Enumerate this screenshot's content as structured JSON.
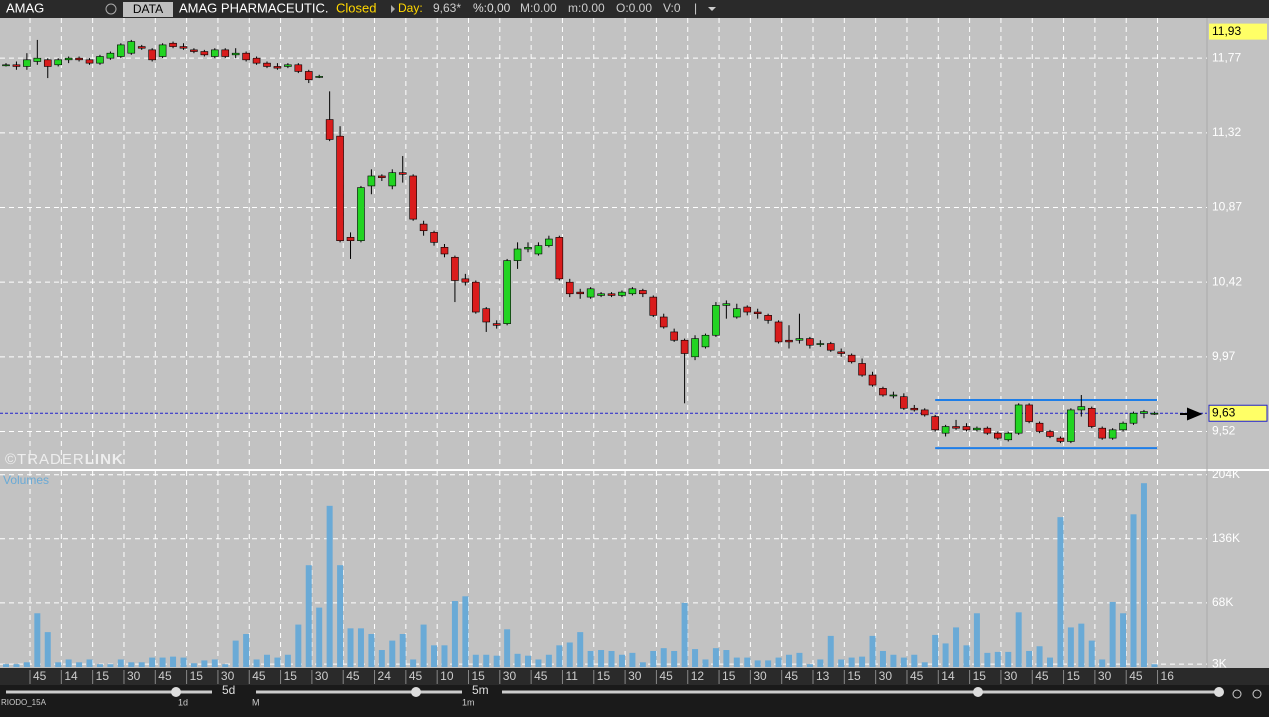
{
  "toolbar": {
    "symbol": "AMAG",
    "source": "DATA",
    "name": "AMAG PHARMACEUTIC.",
    "status": "Closed",
    "period": "Day:",
    "price": "9,63*",
    "change": "%:0,00",
    "max": "M:0.00",
    "min": "m:0.00",
    "open": "O:0.00",
    "volume": "V:0",
    "separator": "|"
  },
  "watermark": {
    "brand": "©TRADER",
    "brand_bold": "LINK"
  },
  "bottom": {
    "zoom_label": "5d",
    "period_label": "5m",
    "zoom_mark": "1d",
    "period_mark": "M",
    "range_mark": "1m",
    "indicator": "RIODO_15A"
  },
  "chart_data": {
    "type": "candlestick",
    "open": [
      11.73,
      11.73,
      11.72,
      11.75,
      11.76,
      11.73,
      11.76,
      11.77,
      11.76,
      11.74,
      11.77,
      11.78,
      11.8,
      11.84,
      11.82,
      11.78,
      11.86,
      11.84,
      11.82,
      11.81,
      11.78,
      11.82,
      11.79,
      11.8,
      11.77,
      11.74,
      11.72,
      11.72,
      11.73,
      11.69,
      11.66,
      11.4,
      11.3,
      10.69,
      10.67,
      11.0,
      11.06,
      11.0,
      11.08,
      11.06,
      10.77,
      10.72,
      10.63,
      10.57,
      10.44,
      10.42,
      10.26,
      10.17,
      10.17,
      10.55,
      10.62,
      10.59,
      10.64,
      10.69,
      10.42,
      10.36,
      10.33,
      10.34,
      10.35,
      10.34,
      10.35,
      10.37,
      10.33,
      10.21,
      10.12,
      10.07,
      9.97,
      10.03,
      10.1,
      10.28,
      10.21,
      10.27,
      10.24,
      10.22,
      10.18,
      10.07,
      10.07,
      10.08,
      10.05,
      10.05,
      10.0,
      9.98,
      9.93,
      9.86,
      9.78,
      9.74,
      9.73,
      9.66,
      9.65,
      9.61,
      9.51,
      9.55,
      9.55,
      9.53,
      9.54,
      9.51,
      9.47,
      9.51,
      9.68,
      9.57,
      9.52,
      9.48,
      9.46,
      9.65,
      9.66,
      9.54,
      9.48,
      9.53,
      9.57,
      9.63,
      9.63
    ],
    "high": [
      11.74,
      11.75,
      11.8,
      11.88,
      11.77,
      11.77,
      11.78,
      11.78,
      11.77,
      11.79,
      11.81,
      11.86,
      11.88,
      11.85,
      11.83,
      11.86,
      11.87,
      11.86,
      11.83,
      11.82,
      11.83,
      11.83,
      11.83,
      11.81,
      11.78,
      11.75,
      11.74,
      11.74,
      11.74,
      11.7,
      11.67,
      11.57,
      11.36,
      10.72,
      11.0,
      11.1,
      11.07,
      11.1,
      11.18,
      11.07,
      10.79,
      10.73,
      10.65,
      10.58,
      10.47,
      10.43,
      10.27,
      10.19,
      10.56,
      10.66,
      10.66,
      10.66,
      10.7,
      10.7,
      10.44,
      10.38,
      10.39,
      10.36,
      10.36,
      10.37,
      10.39,
      10.38,
      10.34,
      10.23,
      10.14,
      10.08,
      10.1,
      10.11,
      10.3,
      10.31,
      10.29,
      10.28,
      10.26,
      10.23,
      10.19,
      10.16,
      10.23,
      10.09,
      10.07,
      10.06,
      10.02,
      9.99,
      9.96,
      9.88,
      9.79,
      9.76,
      9.75,
      9.68,
      9.66,
      9.62,
      9.56,
      9.59,
      9.57,
      9.55,
      9.55,
      9.52,
      9.52,
      9.69,
      9.69,
      9.58,
      9.53,
      9.49,
      9.66,
      9.74,
      9.67,
      9.55,
      9.54,
      9.58,
      9.64,
      9.65,
      9.64
    ],
    "low": [
      11.72,
      11.7,
      11.7,
      11.73,
      11.65,
      11.72,
      11.74,
      11.75,
      11.73,
      11.73,
      11.76,
      11.77,
      11.79,
      11.82,
      11.75,
      11.77,
      11.83,
      11.82,
      11.8,
      11.78,
      11.77,
      11.77,
      11.77,
      11.75,
      11.73,
      11.71,
      11.7,
      11.71,
      11.68,
      11.62,
      11.65,
      11.27,
      10.66,
      10.56,
      10.66,
      10.95,
      11.03,
      10.98,
      11.02,
      10.79,
      10.7,
      10.64,
      10.57,
      10.3,
      10.4,
      10.23,
      10.12,
      10.14,
      10.16,
      10.5,
      10.6,
      10.58,
      10.63,
      10.43,
      10.33,
      10.32,
      10.32,
      10.33,
      10.33,
      10.33,
      10.34,
      10.33,
      10.21,
      10.14,
      10.06,
      9.69,
      9.95,
      10.02,
      10.09,
      10.2,
      10.2,
      10.22,
      10.2,
      10.17,
      10.05,
      10.02,
      10.05,
      10.02,
      10.03,
      10.0,
      9.97,
      9.93,
      9.85,
      9.79,
      9.73,
      9.72,
      9.65,
      9.64,
      9.61,
      9.52,
      9.49,
      9.53,
      9.52,
      9.52,
      9.5,
      9.47,
      9.46,
      9.5,
      9.57,
      9.51,
      9.48,
      9.45,
      9.45,
      9.61,
      9.54,
      9.47,
      9.47,
      9.52,
      9.56,
      9.6,
      9.62
    ],
    "close": [
      11.73,
      11.72,
      11.76,
      11.77,
      11.72,
      11.76,
      11.77,
      11.76,
      11.74,
      11.78,
      11.8,
      11.85,
      11.87,
      11.83,
      11.76,
      11.85,
      11.84,
      11.83,
      11.81,
      11.79,
      11.82,
      11.78,
      11.8,
      11.76,
      11.74,
      11.72,
      11.71,
      11.73,
      11.69,
      11.64,
      11.66,
      11.28,
      10.67,
      10.67,
      10.99,
      11.06,
      11.05,
      11.08,
      11.07,
      10.8,
      10.73,
      10.66,
      10.59,
      10.43,
      10.42,
      10.24,
      10.18,
      10.16,
      10.55,
      10.62,
      10.63,
      10.64,
      10.68,
      10.44,
      10.35,
      10.35,
      10.38,
      10.35,
      10.34,
      10.36,
      10.38,
      10.35,
      10.22,
      10.15,
      10.07,
      9.99,
      10.08,
      10.1,
      10.28,
      10.29,
      10.26,
      10.24,
      10.23,
      10.19,
      10.06,
      10.06,
      10.08,
      10.04,
      10.05,
      10.01,
      9.99,
      9.94,
      9.86,
      9.8,
      9.74,
      9.74,
      9.66,
      9.65,
      9.62,
      9.53,
      9.55,
      9.54,
      9.53,
      9.54,
      9.51,
      9.48,
      9.51,
      9.68,
      9.58,
      9.52,
      9.49,
      9.46,
      9.65,
      9.67,
      9.55,
      9.48,
      9.53,
      9.57,
      9.63,
      9.64,
      9.63
    ],
    "up_color": "#22d422",
    "down_color": "#d91c1c",
    "ylim": [
      9.3,
      12.0
    ],
    "yticks": [
      {
        "value": 11.77,
        "label": "11,77"
      },
      {
        "value": 11.32,
        "label": "11,32"
      },
      {
        "value": 10.87,
        "label": "10,87"
      },
      {
        "value": 10.42,
        "label": "10,42"
      },
      {
        "value": 9.97,
        "label": "9,97"
      },
      {
        "value": 9.52,
        "label": "9,52"
      }
    ],
    "grid": true,
    "xtick_labels": [
      "45",
      "14",
      "15",
      "30",
      "45",
      "15",
      "30",
      "45",
      "15",
      "30",
      "45",
      "24",
      "45",
      "10",
      "15",
      "30",
      "45",
      "11",
      "15",
      "30",
      "45",
      "12",
      "15",
      "30",
      "45",
      "13",
      "15",
      "30",
      "45",
      "14",
      "15",
      "30",
      "45",
      "15",
      "30",
      "45",
      "16"
    ],
    "last_price": {
      "value": 9.63,
      "label": "9,63"
    },
    "high_marker": {
      "value": 11.93,
      "label": "11,93"
    },
    "channel": [
      9.71,
      9.42
    ],
    "volume": {
      "title": "Volumes",
      "color": "#6aaad6",
      "values": [
        3000,
        3000,
        5000,
        57000,
        37000,
        5000,
        8000,
        5000,
        8000,
        3000,
        3000,
        8000,
        5000,
        5000,
        10000,
        10000,
        11000,
        10000,
        4000,
        7000,
        8000,
        3000,
        28000,
        35000,
        8000,
        13000,
        10000,
        13000,
        45000,
        108000,
        63000,
        171000,
        108000,
        41000,
        41000,
        35000,
        18000,
        28000,
        35000,
        8000,
        45000,
        23000,
        23000,
        70000,
        75000,
        13000,
        13000,
        12000,
        40000,
        14000,
        12000,
        8000,
        13000,
        23000,
        26000,
        37000,
        17000,
        18000,
        17000,
        13000,
        15000,
        5000,
        17000,
        20000,
        17000,
        68000,
        19000,
        8000,
        20000,
        18000,
        10000,
        10000,
        7000,
        7000,
        10000,
        13000,
        15000,
        3000,
        8000,
        33000,
        8000,
        10000,
        11000,
        33000,
        17000,
        13000,
        10000,
        13000,
        5000,
        34000,
        25000,
        42000,
        23000,
        57000,
        15000,
        16000,
        16000,
        58000,
        17000,
        22000,
        10000,
        159000,
        42000,
        46000,
        28000,
        8000,
        69000,
        57000,
        162000,
        195000,
        3000
      ],
      "ylim": [
        0,
        209000
      ],
      "yticks": [
        {
          "value": 204000,
          "label": "204K"
        },
        {
          "value": 136000,
          "label": "136K"
        },
        {
          "value": 68000,
          "label": "68K"
        },
        {
          "value": 3000,
          "label": "3K"
        }
      ]
    }
  }
}
